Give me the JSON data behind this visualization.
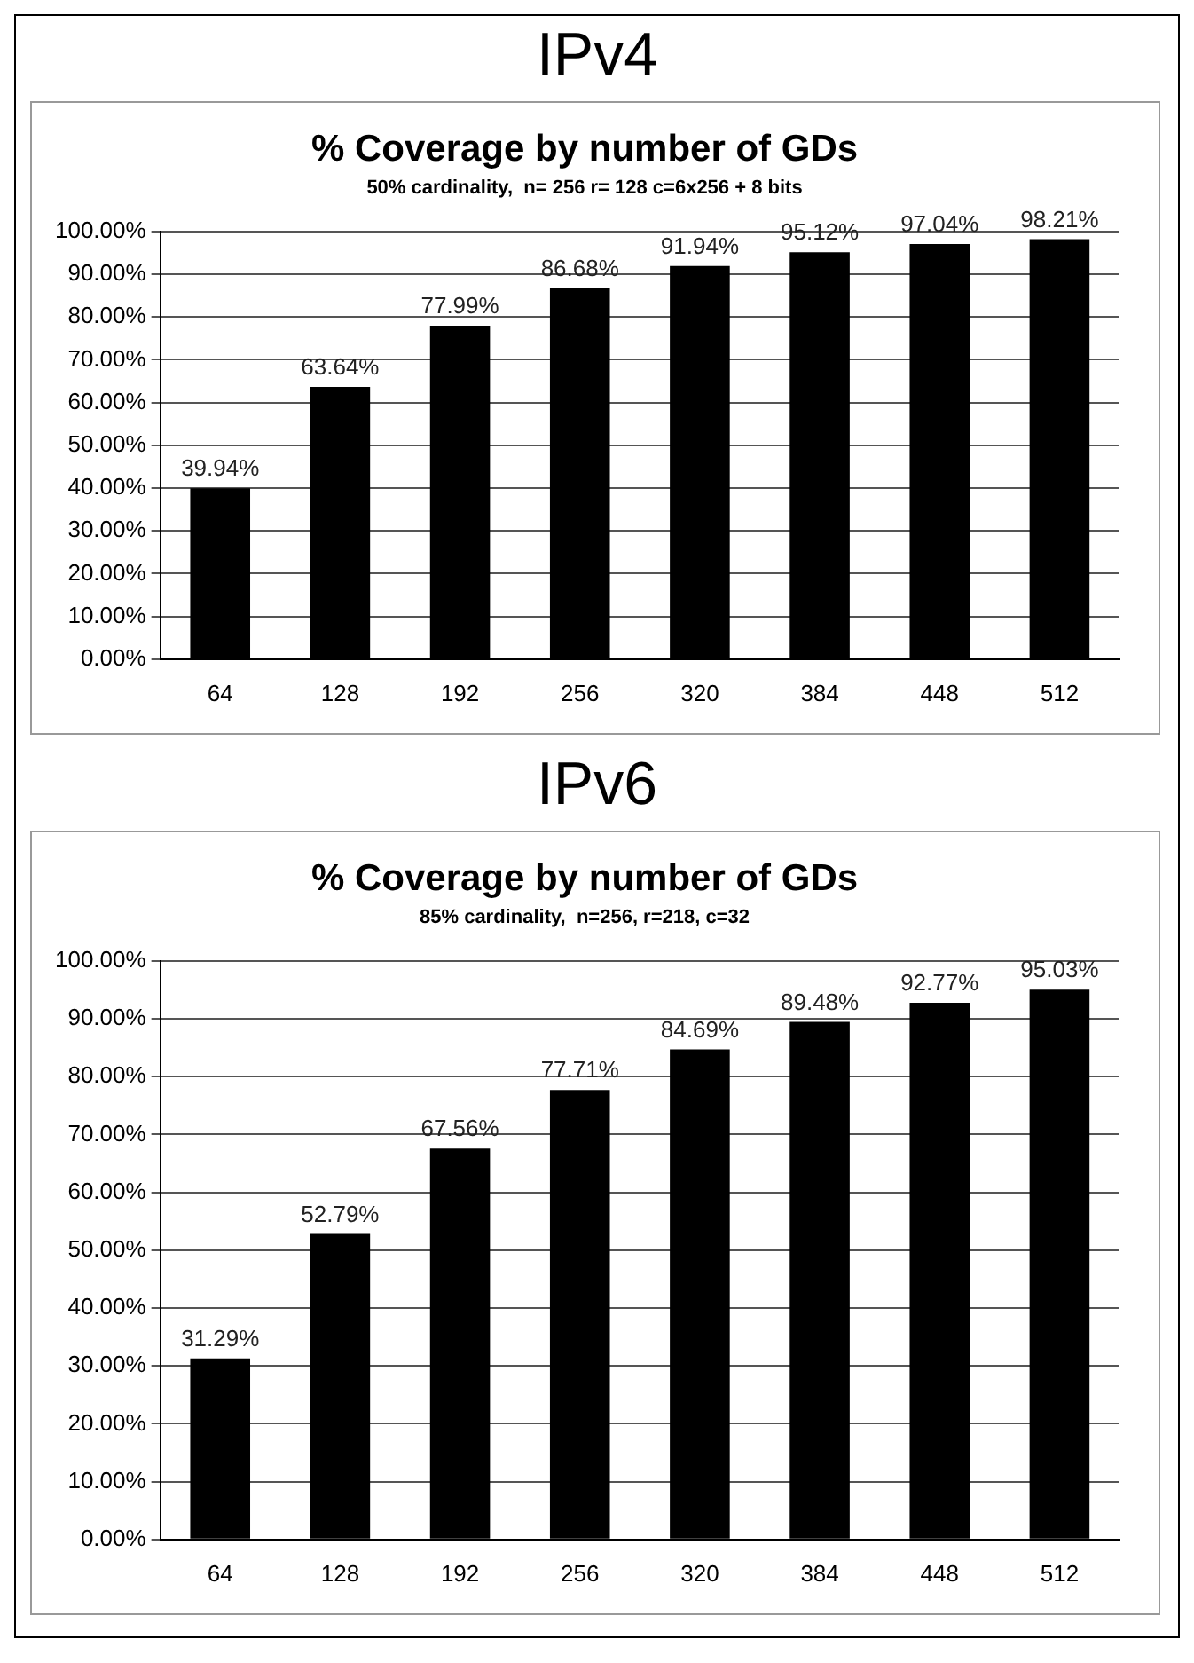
{
  "chart_data": [
    {
      "type": "bar",
      "title": "IPv4",
      "subtitle": "% Coverage by number of GDs",
      "annotations": [
        "50% cardinality,  n= 256 r= 128 c=6x256 + 8 bits"
      ],
      "categories": [
        "64",
        "128",
        "192",
        "256",
        "320",
        "384",
        "448",
        "512"
      ],
      "values": [
        39.94,
        63.64,
        77.99,
        86.68,
        91.94,
        95.12,
        97.04,
        98.21
      ],
      "value_labels": [
        "39.94%",
        "63.64%",
        "77.99%",
        "86.68%",
        "91.94%",
        "95.12%",
        "97.04%",
        "98.21%"
      ],
      "color": "#000000",
      "ylim": [
        0,
        100
      ],
      "yticks": [
        {
          "value": 0,
          "label": "0.00%"
        },
        {
          "value": 10,
          "label": "10.00%"
        },
        {
          "value": 20,
          "label": "20.00%"
        },
        {
          "value": 30,
          "label": "30.00%"
        },
        {
          "value": 40,
          "label": "40.00%"
        },
        {
          "value": 50,
          "label": "50.00%"
        },
        {
          "value": 60,
          "label": "60.00%"
        },
        {
          "value": 70,
          "label": "70.00%"
        },
        {
          "value": 80,
          "label": "80.00%"
        },
        {
          "value": 90,
          "label": "90.00%"
        },
        {
          "value": 100,
          "label": "100.00%"
        }
      ],
      "grid": "y",
      "legend": false
    },
    {
      "type": "bar",
      "title": "IPv6",
      "subtitle": "% Coverage by number of GDs",
      "annotations": [
        "85% cardinality,  n=256, r=218, c=32"
      ],
      "categories": [
        "64",
        "128",
        "192",
        "256",
        "320",
        "384",
        "448",
        "512"
      ],
      "values": [
        31.29,
        52.79,
        67.56,
        77.71,
        84.69,
        89.48,
        92.77,
        95.03
      ],
      "value_labels": [
        "31.29%",
        "52.79%",
        "67.56%",
        "77.71%",
        "84.69%",
        "89.48%",
        "92.77%",
        "95.03%"
      ],
      "color": "#000000",
      "ylim": [
        0,
        100
      ],
      "yticks": [
        {
          "value": 0,
          "label": "0.00%"
        },
        {
          "value": 10,
          "label": "10.00%"
        },
        {
          "value": 20,
          "label": "20.00%"
        },
        {
          "value": 30,
          "label": "30.00%"
        },
        {
          "value": 40,
          "label": "40.00%"
        },
        {
          "value": 50,
          "label": "50.00%"
        },
        {
          "value": 60,
          "label": "60.00%"
        },
        {
          "value": 70,
          "label": "70.00%"
        },
        {
          "value": 80,
          "label": "80.00%"
        },
        {
          "value": 90,
          "label": "90.00%"
        },
        {
          "value": 100,
          "label": "100.00%"
        }
      ],
      "grid": "y",
      "legend": false
    }
  ]
}
